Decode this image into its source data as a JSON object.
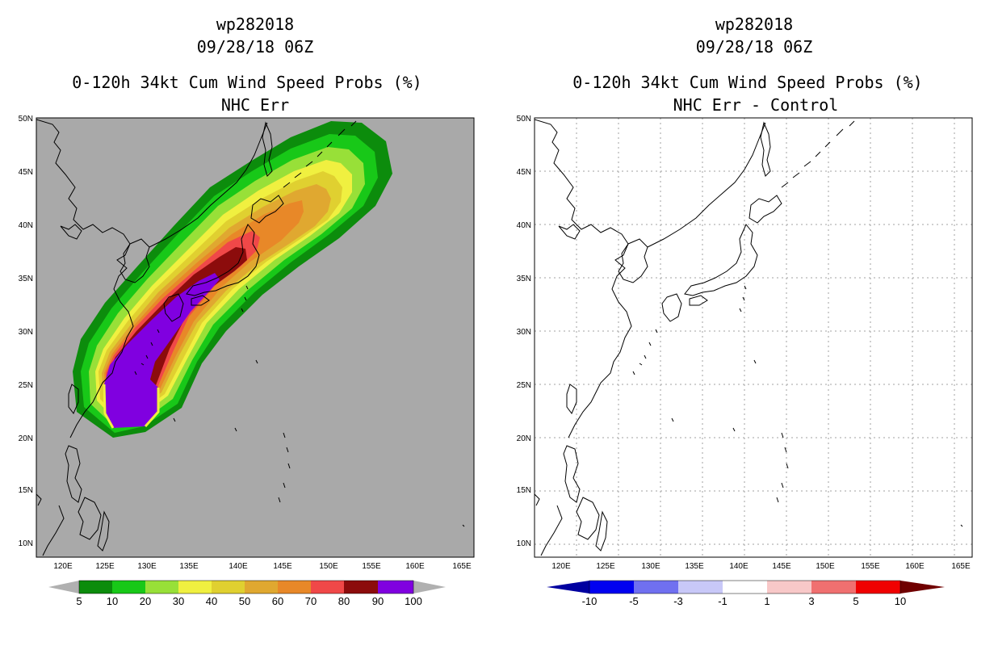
{
  "left_panel": {
    "storm_id": "wp282018",
    "datetime": "09/28/18 06Z",
    "product": "0-120h 34kt Cum Wind Speed Probs (%)",
    "subtitle": "NHC Err",
    "background_color": "#a9a9a9",
    "colorbar": {
      "labels": [
        "5",
        "10",
        "20",
        "30",
        "40",
        "50",
        "60",
        "70",
        "80",
        "90",
        "100"
      ],
      "colors": [
        "#0c8c0c",
        "#18c818",
        "#98e038",
        "#f0f040",
        "#e0d030",
        "#e0a830",
        "#e88828",
        "#f04848",
        "#8c0c0c",
        "#8000e0"
      ],
      "end_color": "#b0b0b0"
    }
  },
  "right_panel": {
    "storm_id": "wp282018",
    "datetime": "09/28/18 06Z",
    "product": "0-120h 34kt Cum Wind Speed Probs (%)",
    "subtitle": "NHC Err - Control",
    "background_color": "#ffffff",
    "colorbar": {
      "labels": [
        "-10",
        "-5",
        "-3",
        "-1",
        "1",
        "3",
        "5",
        "10"
      ],
      "colors": [
        "#0000a0",
        "#0000f0",
        "#7070f0",
        "#c8c8f8",
        "#ffffff",
        "#f8c8c8",
        "#f07070",
        "#f00000",
        "#a00000",
        "#700000"
      ]
    }
  },
  "axes": {
    "lat_labels": [
      "50N",
      "45N",
      "40N",
      "35N",
      "30N",
      "25N",
      "20N",
      "15N",
      "10N"
    ],
    "lon_labels": [
      "120E",
      "125E",
      "130E",
      "135E",
      "140E",
      "145E",
      "150E",
      "155E",
      "160E",
      "165E"
    ]
  }
}
